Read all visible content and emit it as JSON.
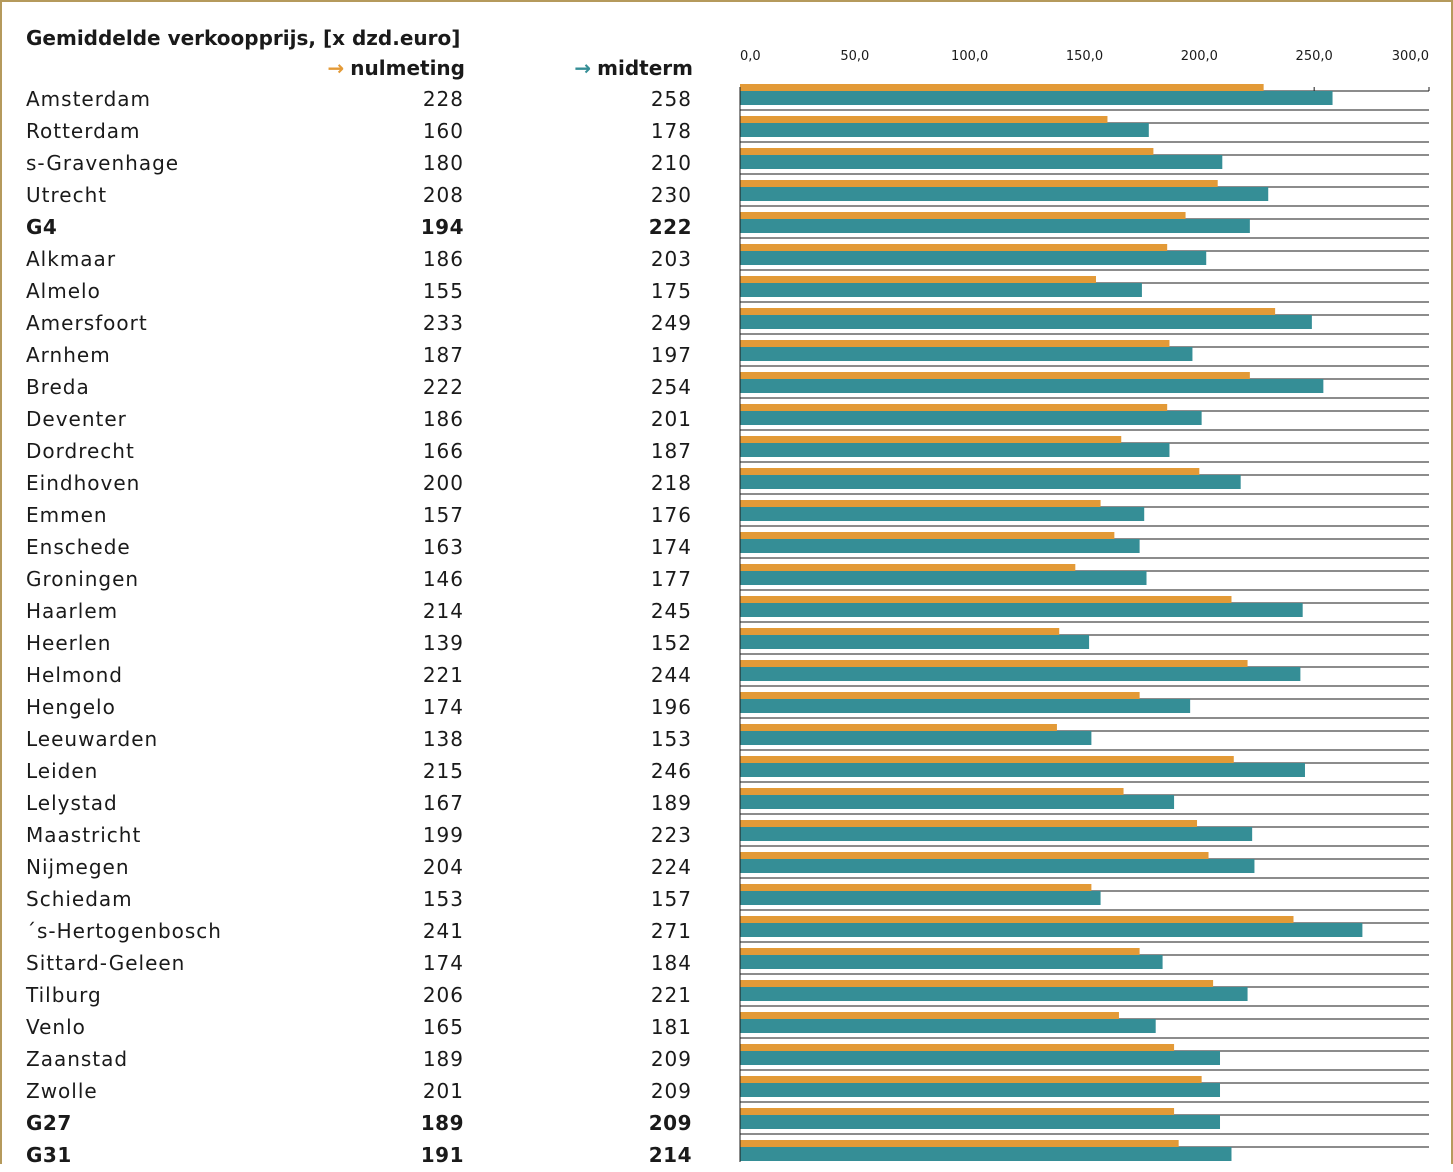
{
  "chart_data": {
    "type": "bar",
    "orientation": "horizontal",
    "title": "Gemiddelde verkoopprijs, [x dzd.euro]",
    "series": [
      {
        "name": "nulmeting",
        "color": "#e39a37"
      },
      {
        "name": "midterm",
        "color": "#358e96"
      }
    ],
    "xlim": [
      0,
      300
    ],
    "x_ticks": [
      "0,0",
      "50,0",
      "100,0",
      "150,0",
      "200,0",
      "250,0",
      "300,0"
    ],
    "legend_placement": "column headers, top",
    "rows": [
      {
        "name": "Amsterdam",
        "nulmeting": "228",
        "midterm": "258",
        "bold": false
      },
      {
        "name": "Rotterdam",
        "nulmeting": "160",
        "midterm": "178",
        "bold": false
      },
      {
        "name": "s-Gravenhage",
        "nulmeting": "180",
        "midterm": "210",
        "bold": false
      },
      {
        "name": "Utrecht",
        "nulmeting": "208",
        "midterm": "230",
        "bold": false
      },
      {
        "name": "G4",
        "nulmeting": "194",
        "midterm": "222",
        "bold": true
      },
      {
        "name": "Alkmaar",
        "nulmeting": "186",
        "midterm": "203",
        "bold": false
      },
      {
        "name": "Almelo",
        "nulmeting": "155",
        "midterm": "175",
        "bold": false
      },
      {
        "name": "Amersfoort",
        "nulmeting": "233",
        "midterm": "249",
        "bold": false
      },
      {
        "name": "Arnhem",
        "nulmeting": "187",
        "midterm": "197",
        "bold": false
      },
      {
        "name": "Breda",
        "nulmeting": "222",
        "midterm": "254",
        "bold": false
      },
      {
        "name": "Deventer",
        "nulmeting": "186",
        "midterm": "201",
        "bold": false
      },
      {
        "name": "Dordrecht",
        "nulmeting": "166",
        "midterm": "187",
        "bold": false
      },
      {
        "name": "Eindhoven",
        "nulmeting": "200",
        "midterm": "218",
        "bold": false
      },
      {
        "name": "Emmen",
        "nulmeting": "157",
        "midterm": "176",
        "bold": false
      },
      {
        "name": "Enschede",
        "nulmeting": "163",
        "midterm": "174",
        "bold": false
      },
      {
        "name": "Groningen",
        "nulmeting": "146",
        "midterm": "177",
        "bold": false
      },
      {
        "name": "Haarlem",
        "nulmeting": "214",
        "midterm": "245",
        "bold": false
      },
      {
        "name": "Heerlen",
        "nulmeting": "139",
        "midterm": "152",
        "bold": false
      },
      {
        "name": "Helmond",
        "nulmeting": "221",
        "midterm": "244",
        "bold": false
      },
      {
        "name": "Hengelo",
        "nulmeting": "174",
        "midterm": "196",
        "bold": false
      },
      {
        "name": "Leeuwarden",
        "nulmeting": "138",
        "midterm": "153",
        "bold": false
      },
      {
        "name": "Leiden",
        "nulmeting": "215",
        "midterm": "246",
        "bold": false
      },
      {
        "name": "Lelystad",
        "nulmeting": "167",
        "midterm": "189",
        "bold": false
      },
      {
        "name": "Maastricht",
        "nulmeting": "199",
        "midterm": "223",
        "bold": false
      },
      {
        "name": "Nijmegen",
        "nulmeting": "204",
        "midterm": "224",
        "bold": false
      },
      {
        "name": "Schiedam",
        "nulmeting": "153",
        "midterm": "157",
        "bold": false
      },
      {
        "name": "´s-Hertogenbosch",
        "nulmeting": "241",
        "midterm": "271",
        "bold": false
      },
      {
        "name": "Sittard-Geleen",
        "nulmeting": "174",
        "midterm": "184",
        "bold": false
      },
      {
        "name": "Tilburg",
        "nulmeting": "206",
        "midterm": "221",
        "bold": false
      },
      {
        "name": "Venlo",
        "nulmeting": "165",
        "midterm": "181",
        "bold": false
      },
      {
        "name": "Zaanstad",
        "nulmeting": "189",
        "midterm": "209",
        "bold": false
      },
      {
        "name": "Zwolle",
        "nulmeting": "201",
        "midterm": "209",
        "bold": false
      },
      {
        "name": "G27",
        "nulmeting": "189",
        "midterm": "209",
        "bold": true
      },
      {
        "name": "G31",
        "nulmeting": "191",
        "midterm": "214",
        "bold": true
      }
    ]
  }
}
